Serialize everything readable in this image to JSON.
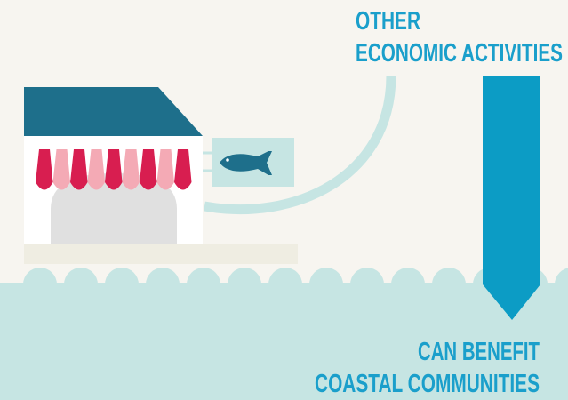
{
  "top_label": {
    "line1": "OTHER",
    "line2": "ECONOMIC ACTIVITIES"
  },
  "bottom_label": {
    "line1": "CAN BENEFIT",
    "line2": "COASTAL COMMUNITIES"
  }
}
